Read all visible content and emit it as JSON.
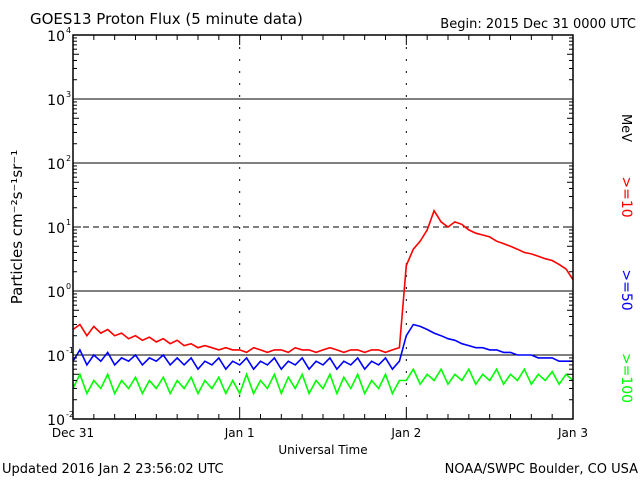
{
  "chart_data": {
    "type": "line",
    "title": "GOES13 Proton Flux (5 minute data)",
    "begin_label": "Begin: 2015 Dec 31 0000 UTC",
    "xlabel": "Universal Time",
    "ylabel": "Particles cm⁻²s⁻¹sr⁻¹",
    "units_label": "MeV",
    "x_unit": "hours since 2015 Dec 31 0000 UTC",
    "xlim": [
      0,
      72
    ],
    "ylim": [
      0.01,
      10000
    ],
    "yscale": "log",
    "x_tick_labels": [
      {
        "x": 0,
        "label": "Dec 31"
      },
      {
        "x": 24,
        "label": "Jan 1"
      },
      {
        "x": 48,
        "label": "Jan 2"
      },
      {
        "x": 72,
        "label": "Jan 3"
      }
    ],
    "y_tick_labels": [
      {
        "y": 0.01,
        "base": "10",
        "exp": "-2"
      },
      {
        "y": 0.1,
        "base": "10",
        "exp": "-1"
      },
      {
        "y": 1,
        "base": "10",
        "exp": "0"
      },
      {
        "y": 10,
        "base": "10",
        "exp": "1"
      },
      {
        "y": 100,
        "base": "10",
        "exp": "2"
      },
      {
        "y": 1000,
        "base": "10",
        "exp": "3"
      },
      {
        "y": 10000,
        "base": "10",
        "exp": "4"
      }
    ],
    "series": [
      {
        "name": ">=10",
        "color": "#ff0000",
        "values": [
          0.25,
          0.3,
          0.2,
          0.28,
          0.22,
          0.25,
          0.2,
          0.22,
          0.18,
          0.2,
          0.17,
          0.19,
          0.16,
          0.18,
          0.15,
          0.17,
          0.14,
          0.15,
          0.13,
          0.14,
          0.13,
          0.12,
          0.13,
          0.12,
          0.12,
          0.11,
          0.13,
          0.12,
          0.11,
          0.12,
          0.12,
          0.11,
          0.13,
          0.12,
          0.12,
          0.11,
          0.12,
          0.13,
          0.12,
          0.11,
          0.12,
          0.12,
          0.11,
          0.12,
          0.12,
          0.11,
          0.12,
          0.13,
          2.5,
          4.5,
          6,
          9,
          18,
          12,
          10,
          12,
          11,
          9,
          8,
          7.5,
          7,
          6,
          5.5,
          5,
          4.5,
          4,
          3.8,
          3.5,
          3.2,
          3,
          2.6,
          2.2,
          1.5
        ]
      },
      {
        "name": ">=50",
        "color": "#0000ff",
        "values": [
          0.08,
          0.12,
          0.07,
          0.1,
          0.08,
          0.11,
          0.07,
          0.09,
          0.08,
          0.1,
          0.07,
          0.09,
          0.08,
          0.1,
          0.07,
          0.09,
          0.07,
          0.09,
          0.06,
          0.08,
          0.07,
          0.09,
          0.06,
          0.08,
          0.07,
          0.09,
          0.06,
          0.08,
          0.07,
          0.09,
          0.06,
          0.08,
          0.07,
          0.09,
          0.06,
          0.08,
          0.07,
          0.09,
          0.06,
          0.08,
          0.07,
          0.09,
          0.06,
          0.08,
          0.07,
          0.09,
          0.06,
          0.08,
          0.2,
          0.3,
          0.28,
          0.25,
          0.22,
          0.2,
          0.18,
          0.17,
          0.15,
          0.14,
          0.13,
          0.13,
          0.12,
          0.12,
          0.11,
          0.11,
          0.1,
          0.1,
          0.1,
          0.09,
          0.09,
          0.09,
          0.08,
          0.08,
          0.08
        ]
      },
      {
        "name": ">=100",
        "color": "#00ff00",
        "values": [
          0.03,
          0.05,
          0.025,
          0.04,
          0.03,
          0.05,
          0.025,
          0.04,
          0.03,
          0.045,
          0.025,
          0.04,
          0.03,
          0.045,
          0.025,
          0.04,
          0.03,
          0.045,
          0.025,
          0.04,
          0.03,
          0.045,
          0.025,
          0.04,
          0.025,
          0.05,
          0.025,
          0.04,
          0.03,
          0.05,
          0.025,
          0.045,
          0.03,
          0.05,
          0.025,
          0.04,
          0.03,
          0.05,
          0.025,
          0.045,
          0.03,
          0.05,
          0.025,
          0.04,
          0.03,
          0.05,
          0.025,
          0.04,
          0.04,
          0.06,
          0.035,
          0.05,
          0.04,
          0.06,
          0.035,
          0.05,
          0.04,
          0.06,
          0.035,
          0.05,
          0.04,
          0.06,
          0.035,
          0.05,
          0.04,
          0.06,
          0.035,
          0.05,
          0.04,
          0.055,
          0.035,
          0.05,
          0.04
        ]
      }
    ]
  },
  "footer": {
    "updated": "Updated 2016 Jan  2 23:56:02 UTC",
    "credit": "NOAA/SWPC Boulder, CO USA"
  }
}
